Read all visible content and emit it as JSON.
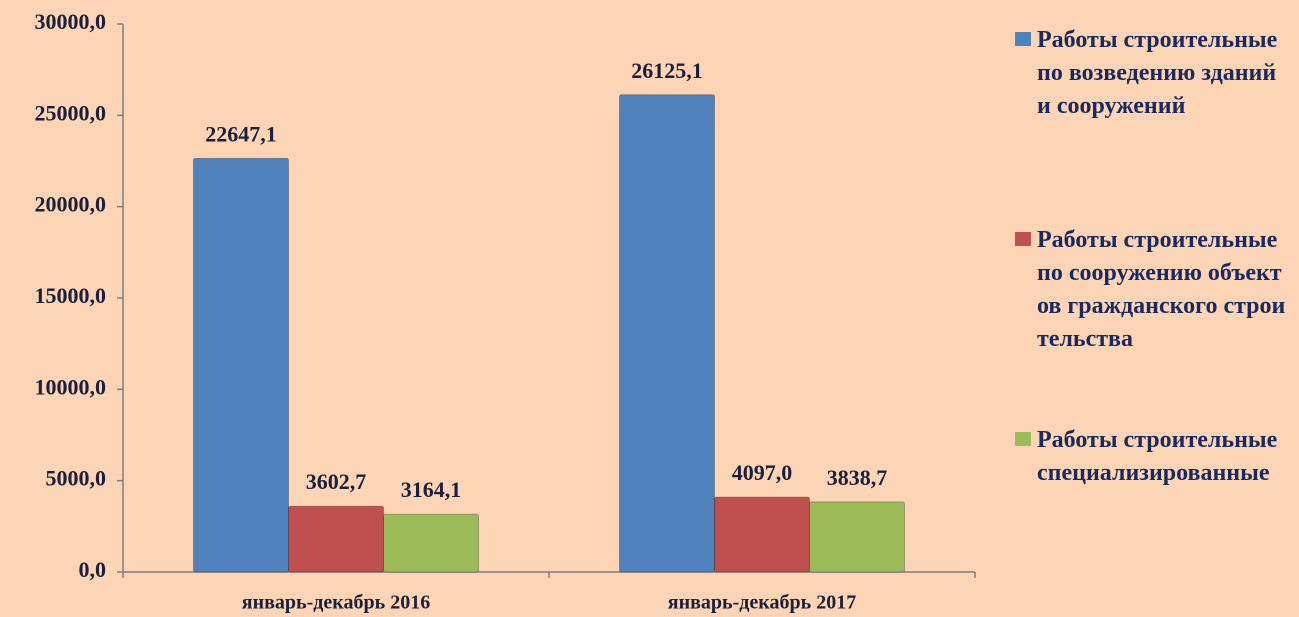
{
  "chart_data": {
    "type": "bar",
    "categories": [
      "январь-декабрь 2016",
      "январь-декабрь 2017"
    ],
    "series": [
      {
        "name": "Работы строительные по возведению зданий и сооружений",
        "color": "#4f81bd",
        "values": [
          22647.1,
          26125.1
        ],
        "value_labels": [
          "22647,1",
          "26125,1"
        ]
      },
      {
        "name": "Работы строительные по сооружению объектов гражданского строительства",
        "color": "#c0504d",
        "values": [
          3602.7,
          4097.0
        ],
        "value_labels": [
          "3602,7",
          "4097,0"
        ]
      },
      {
        "name": "Работы строительные специализированные",
        "color": "#9bbb59",
        "values": [
          3164.1,
          3838.7
        ],
        "value_labels": [
          "3164,1",
          "3838,7"
        ]
      }
    ],
    "ylim": [
      0,
      30000
    ],
    "yticks": [
      {
        "value": 0,
        "label": "0,0"
      },
      {
        "value": 5000,
        "label": "5000,0"
      },
      {
        "value": 10000,
        "label": "10000,0"
      },
      {
        "value": 15000,
        "label": "15000,0"
      },
      {
        "value": 20000,
        "label": "20000,0"
      },
      {
        "value": 25000,
        "label": "25000,0"
      },
      {
        "value": 30000,
        "label": "30000,0"
      }
    ],
    "grid": false,
    "legend": "right"
  }
}
